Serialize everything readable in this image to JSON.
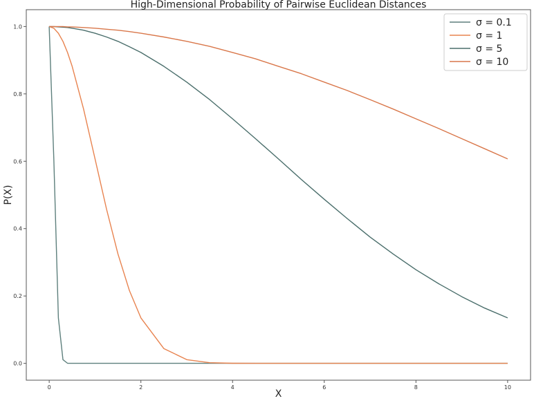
{
  "chart_data": {
    "type": "line",
    "title": "High-Dimensional Probability of Pairwise Euclidean Distances",
    "xlabel": "X",
    "ylabel": "P(X)",
    "xlim": [
      -0.5,
      10.5
    ],
    "ylim": [
      -0.05,
      1.05
    ],
    "xticks": [
      0,
      2,
      4,
      6,
      8,
      10
    ],
    "xtick_labels": [
      "0",
      "2",
      "4",
      "6",
      "8",
      "10"
    ],
    "yticks": [
      0.0,
      0.2,
      0.4,
      0.6,
      0.8,
      1.0
    ],
    "ytick_labels": [
      "0.0",
      "0.2",
      "0.4",
      "0.6",
      "0.8",
      "1.0"
    ],
    "grid": false,
    "legend_position": "top-right",
    "x": [
      0,
      0.1,
      0.2,
      0.3,
      0.4,
      0.5,
      0.75,
      1,
      1.25,
      1.5,
      1.75,
      2,
      2.5,
      3,
      3.5,
      4,
      4.5,
      5,
      5.5,
      6,
      6.5,
      7,
      7.5,
      8,
      8.5,
      9,
      9.5,
      10
    ],
    "series": [
      {
        "name": "σ = 0.1",
        "color": "#5d7f7c",
        "values": [
          1.0,
          0.607,
          0.135,
          0.011,
          0.0003,
          0.0,
          0.0,
          0.0,
          0.0,
          0.0,
          0.0,
          0.0,
          0.0,
          0.0,
          0.0,
          0.0,
          0.0,
          0.0,
          0.0,
          0.0,
          0.0,
          0.0,
          0.0,
          0.0,
          0.0,
          0.0,
          0.0,
          0.0
        ]
      },
      {
        "name": "σ = 1",
        "color": "#e8834f",
        "values": [
          1.0,
          0.995,
          0.98,
          0.956,
          0.923,
          0.882,
          0.755,
          0.607,
          0.458,
          0.325,
          0.216,
          0.135,
          0.044,
          0.011,
          0.002,
          0.0003,
          0.0,
          0.0,
          0.0,
          0.0,
          0.0,
          0.0,
          0.0,
          0.0,
          0.0,
          0.0,
          0.0,
          0.0
        ]
      },
      {
        "name": "σ = 5",
        "color": "#4a6e6b",
        "values": [
          1.0,
          1.0,
          0.999,
          0.998,
          0.997,
          0.995,
          0.989,
          0.98,
          0.969,
          0.956,
          0.94,
          0.923,
          0.882,
          0.835,
          0.783,
          0.726,
          0.667,
          0.607,
          0.546,
          0.487,
          0.43,
          0.375,
          0.325,
          0.278,
          0.236,
          0.198,
          0.164,
          0.135
        ]
      },
      {
        "name": "σ = 10",
        "color": "#d9774a",
        "values": [
          1.0,
          1.0,
          1.0,
          1.0,
          0.999,
          0.999,
          0.997,
          0.995,
          0.992,
          0.989,
          0.985,
          0.98,
          0.969,
          0.956,
          0.941,
          0.923,
          0.904,
          0.882,
          0.86,
          0.835,
          0.81,
          0.783,
          0.755,
          0.726,
          0.697,
          0.667,
          0.637,
          0.607
        ]
      }
    ]
  }
}
